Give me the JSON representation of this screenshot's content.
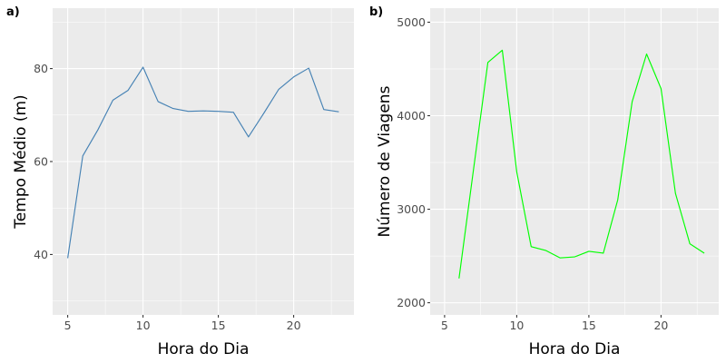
{
  "chart_data": [
    {
      "tag": "a)",
      "type": "line",
      "xlabel": "Hora do Dia",
      "ylabel": "Tempo Médio (m)",
      "xlim": [
        4,
        24
      ],
      "ylim": [
        27,
        93
      ],
      "xticks": [
        5,
        10,
        15,
        20
      ],
      "yticks": [
        40,
        60,
        80
      ],
      "xminor": [
        7.5,
        12.5,
        17.5,
        22.5
      ],
      "yminor": [
        30,
        50,
        70,
        90
      ],
      "grid": true,
      "series": [
        {
          "color": "#4682b4",
          "x": [
            5,
            6,
            7,
            8,
            9,
            10,
            11,
            12,
            13,
            14,
            15,
            16,
            17,
            18,
            19,
            20,
            21,
            22,
            23
          ],
          "y": [
            39.2,
            61.2,
            66.8,
            73.2,
            75.3,
            80.3,
            72.9,
            71.4,
            70.8,
            70.9,
            70.8,
            70.6,
            65.3,
            70.3,
            75.5,
            78.2,
            80.1,
            71.2,
            70.7
          ]
        }
      ]
    },
    {
      "tag": "b)",
      "type": "line",
      "xlabel": "Hora do Dia",
      "ylabel": "Número de Viagens",
      "xlim": [
        4,
        24
      ],
      "ylim": [
        1870,
        5150
      ],
      "xticks": [
        5,
        10,
        15,
        20
      ],
      "yticks": [
        2000,
        3000,
        4000,
        5000
      ],
      "xminor": [
        7.5,
        12.5,
        17.5,
        22.5
      ],
      "yminor": [
        2500,
        3500,
        4500
      ],
      "grid": true,
      "series": [
        {
          "color": "#00ff00",
          "x": [
            6,
            7,
            8,
            9,
            10,
            11,
            12,
            13,
            14,
            15,
            16,
            17,
            18,
            19,
            20,
            21,
            22,
            23
          ],
          "y": [
            2260,
            3420,
            4570,
            4700,
            3400,
            2600,
            2560,
            2480,
            2490,
            2550,
            2530,
            3100,
            4150,
            4660,
            4290,
            3170,
            2630,
            2530
          ]
        }
      ]
    }
  ]
}
